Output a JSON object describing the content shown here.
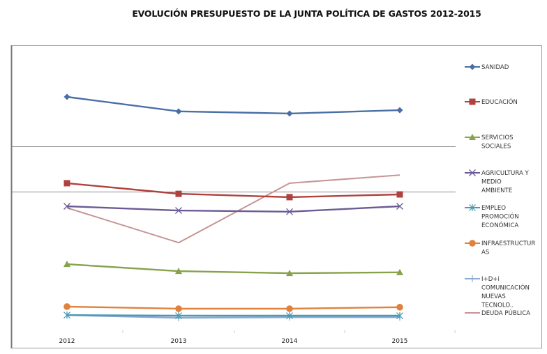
{
  "chart_data": {
    "type": "line",
    "title": "EVOLUCIÓN PRESUPUESTO DE LA JUNTA POLÍTICA DE GASTOS 2012-2015",
    "xlabel": "",
    "ylabel": "",
    "categories": [
      "2012",
      "2013",
      "2014",
      "2015"
    ],
    "ylim": [
      0,
      100
    ],
    "y_units": "relative (no y-axis scale shown)",
    "grid": false,
    "legend_position": "right",
    "series": [
      {
        "name": "SANIDAD",
        "legend_lines": [
          "SANIDAD"
        ],
        "color": "#4a6fa5",
        "marker": "diamond",
        "values": [
          83.0,
          78.2,
          77.5,
          78.6
        ]
      },
      {
        "name": "EDUCACIÓN",
        "legend_lines": [
          "EDUCACIÓN"
        ],
        "color": "#b0413e",
        "marker": "square",
        "values": [
          54.5,
          51.0,
          49.9,
          50.8
        ]
      },
      {
        "name": "SERVICIOS SOCIALES",
        "legend_lines": [
          "SERVICIOS",
          "SOCIALES"
        ],
        "color": "#86a24a",
        "marker": "triangle",
        "values": [
          27.8,
          25.5,
          24.8,
          25.1
        ]
      },
      {
        "name": "AGRICULTURA Y MEDIO AMBIENTE",
        "legend_lines": [
          "AGRICULTURA Y",
          "MEDIO",
          "AMBIENTE"
        ],
        "color": "#6b5b95",
        "marker": "x",
        "values": [
          46.9,
          45.5,
          45.1,
          46.9
        ]
      },
      {
        "name": "EMPLEO PROMOCIÓN ECONÓMICA",
        "legend_lines": [
          "EMPLEO",
          "PROMOCIÓN",
          "ECONÓMICA"
        ],
        "color": "#4a9ab5",
        "marker": "star",
        "values": [
          11.0,
          10.8,
          10.8,
          10.8
        ]
      },
      {
        "name": "INFRAESTRUCTURAS",
        "legend_lines": [
          "INFRAESTRUCTUR",
          "AS"
        ],
        "color": "#e0823c",
        "marker": "circle",
        "values": [
          13.8,
          13.1,
          13.1,
          13.6
        ]
      },
      {
        "name": "I+D+i COMUNICACIÓN NUEVAS TECNOLO..",
        "legend_lines": [
          "I+D+i",
          "COMUNICACIÓN",
          "NUEVAS",
          "TECNOLO.."
        ],
        "color": "#8fa8d0",
        "marker": "plus",
        "values": [
          11.0,
          10.1,
          10.3,
          10.3
        ]
      },
      {
        "name": "DEUDA PÚBLICA",
        "legend_lines": [
          "DEUDA PÚBLICA"
        ],
        "color": "#c79394",
        "marker": "none",
        "values": [
          46.4,
          34.9,
          54.5,
          57.2
        ]
      }
    ]
  }
}
